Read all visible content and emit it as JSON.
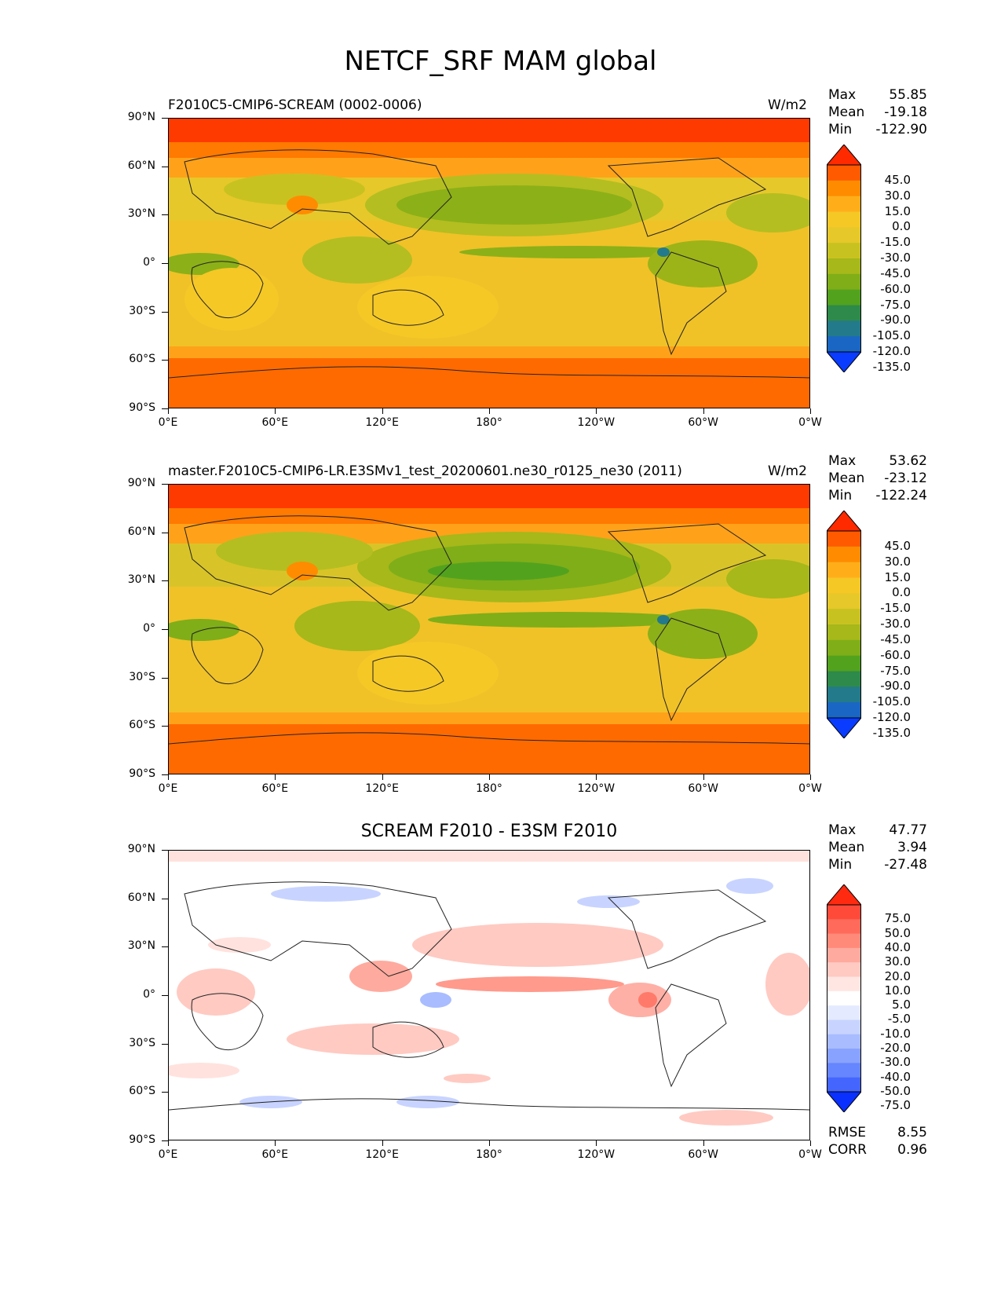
{
  "figure": {
    "title": "NETCF_SRF MAM global"
  },
  "axes": {
    "yticks": [
      "90°N",
      "60°N",
      "30°N",
      "0°",
      "30°S",
      "60°S",
      "90°S"
    ],
    "xticks": [
      "0°E",
      "60°E",
      "120°E",
      "180°",
      "120°W",
      "60°W",
      "0°W"
    ]
  },
  "panels": [
    {
      "title_left": "F2010C5-CMIP6-SCREAM (0002-0006)",
      "title_center": "",
      "units": "W/m2",
      "stats": [
        {
          "label": "Max",
          "value": "55.85"
        },
        {
          "label": "Mean",
          "value": "-19.18"
        },
        {
          "label": "Min",
          "value": "-122.90"
        }
      ],
      "colorbar": {
        "labels": [
          "45.0",
          "30.0",
          "15.0",
          "0.0",
          "-15.0",
          "-30.0",
          "-45.0",
          "-60.0",
          "-75.0",
          "-90.0",
          "-105.0",
          "-120.0",
          "-135.0"
        ],
        "colors": [
          "#ff2a00",
          "#ff5a00",
          "#ff8c00",
          "#ffae1a",
          "#f5c826",
          "#e6c82a",
          "#c8c220",
          "#a6b81a",
          "#7fae18",
          "#52a21e",
          "#2e8a4a",
          "#237a8a",
          "#1a66c4",
          "#0a3cff"
        ]
      }
    },
    {
      "title_left": "master.F2010C5-CMIP6-LR.E3SMv1_test_20200601.ne30_r0125_ne30 (2011)",
      "title_center": "",
      "units": "W/m2",
      "stats": [
        {
          "label": "Max",
          "value": "53.62"
        },
        {
          "label": "Mean",
          "value": "-23.12"
        },
        {
          "label": "Min",
          "value": "-122.24"
        }
      ],
      "colorbar": {
        "labels": [
          "45.0",
          "30.0",
          "15.0",
          "0.0",
          "-15.0",
          "-30.0",
          "-45.0",
          "-60.0",
          "-75.0",
          "-90.0",
          "-105.0",
          "-120.0",
          "-135.0"
        ],
        "colors": [
          "#ff2a00",
          "#ff5a00",
          "#ff8c00",
          "#ffae1a",
          "#f5c826",
          "#e6c82a",
          "#c8c220",
          "#a6b81a",
          "#7fae18",
          "#52a21e",
          "#2e8a4a",
          "#237a8a",
          "#1a66c4",
          "#0a3cff"
        ]
      }
    },
    {
      "title_left": "",
      "title_center": "SCREAM F2010 - E3SM F2010",
      "units": "",
      "stats": [
        {
          "label": "Max",
          "value": "47.77"
        },
        {
          "label": "Mean",
          "value": "3.94"
        },
        {
          "label": "Min",
          "value": "-27.48"
        }
      ],
      "colorbar": {
        "labels": [
          "75.0",
          "50.0",
          "40.0",
          "30.0",
          "20.0",
          "10.0",
          "5.0",
          "-5.0",
          "-10.0",
          "-20.0",
          "-30.0",
          "-40.0",
          "-50.0",
          "-75.0"
        ],
        "colors": [
          "#ff2a10",
          "#ff4a3a",
          "#ff6a5a",
          "#ff8a7a",
          "#ffaa9e",
          "#ffcac2",
          "#ffe6e2",
          "#ffffff",
          "#e4eaff",
          "#c8d4ff",
          "#a8bcff",
          "#88a2ff",
          "#6686ff",
          "#4466ff",
          "#0a30ff"
        ]
      },
      "extra_stats": [
        {
          "label": "RMSE",
          "value": "8.55"
        },
        {
          "label": "CORR",
          "value": "0.96"
        }
      ]
    }
  ]
}
